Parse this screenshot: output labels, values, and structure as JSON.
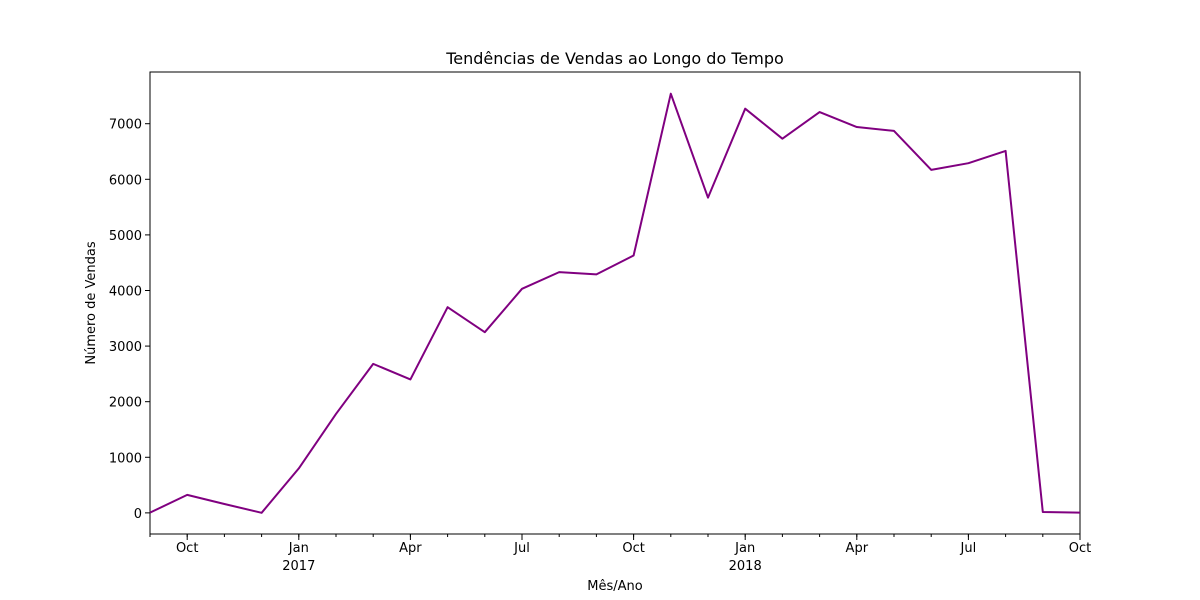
{
  "chart_data": {
    "type": "line",
    "title": "Tendências de Vendas ao Longo do Tempo",
    "xlabel": "Mês/Ano",
    "ylabel": "Número de Vendas",
    "grid": false,
    "ylim": [
      -380,
      7930
    ],
    "xlim": [
      "2016-09",
      "2018-10"
    ],
    "yticks": [
      0,
      1000,
      2000,
      3000,
      4000,
      5000,
      6000,
      7000
    ],
    "xticks_major": [
      {
        "x": "2016-10",
        "label": "Oct",
        "sublabel": ""
      },
      {
        "x": "2017-01",
        "label": "Jan",
        "sublabel": "2017"
      },
      {
        "x": "2017-04",
        "label": "Apr",
        "sublabel": ""
      },
      {
        "x": "2017-07",
        "label": "Jul",
        "sublabel": ""
      },
      {
        "x": "2017-10",
        "label": "Oct",
        "sublabel": ""
      },
      {
        "x": "2018-01",
        "label": "Jan",
        "sublabel": "2018"
      },
      {
        "x": "2018-04",
        "label": "Apr",
        "sublabel": ""
      },
      {
        "x": "2018-07",
        "label": "Jul",
        "sublabel": ""
      },
      {
        "x": "2018-10",
        "label": "Oct",
        "sublabel": ""
      }
    ],
    "line_color": "#800080",
    "x": [
      "2016-09",
      "2016-10",
      "2016-11",
      "2016-12",
      "2017-01",
      "2017-02",
      "2017-03",
      "2017-04",
      "2017-05",
      "2017-06",
      "2017-07",
      "2017-08",
      "2017-09",
      "2017-10",
      "2017-11",
      "2017-12",
      "2018-01",
      "2018-02",
      "2018-03",
      "2018-04",
      "2018-05",
      "2018-06",
      "2018-07",
      "2018-08",
      "2018-09",
      "2018-10"
    ],
    "values": [
      4,
      324,
      160,
      1,
      800,
      1780,
      2680,
      2400,
      3700,
      3250,
      4030,
      4330,
      4290,
      4630,
      7540,
      5670,
      7270,
      6730,
      7210,
      6940,
      6870,
      6170,
      6290,
      6510,
      16,
      4
    ]
  }
}
